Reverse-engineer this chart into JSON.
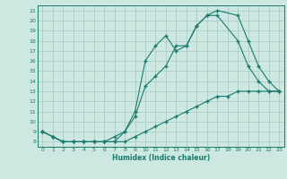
{
  "xlabel": "Humidex (Indice chaleur)",
  "bg_color": "#cce8e0",
  "grid_color": "#aacccc",
  "line_color": "#1a7a6e",
  "xlim": [
    -0.5,
    23.5
  ],
  "ylim": [
    7.5,
    21.5
  ],
  "xticks": [
    0,
    1,
    2,
    3,
    4,
    5,
    6,
    7,
    8,
    9,
    10,
    11,
    12,
    13,
    14,
    15,
    16,
    17,
    18,
    19,
    20,
    21,
    22,
    23
  ],
  "yticks": [
    8,
    9,
    10,
    11,
    12,
    13,
    14,
    15,
    16,
    17,
    18,
    19,
    20,
    21
  ],
  "line1_x": [
    0,
    1,
    2,
    3,
    4,
    5,
    6,
    7,
    8,
    9,
    10,
    11,
    12,
    13,
    14,
    15,
    16,
    17,
    18,
    19,
    20,
    21,
    22,
    23
  ],
  "line1_y": [
    9.0,
    8.5,
    8.0,
    8.0,
    8.0,
    8.0,
    8.0,
    8.0,
    8.0,
    8.5,
    9.0,
    9.5,
    10.0,
    10.5,
    11.0,
    11.5,
    12.0,
    12.5,
    12.5,
    13.0,
    13.0,
    13.0,
    13.0,
    13.0
  ],
  "line2_x": [
    0,
    1,
    2,
    3,
    4,
    5,
    6,
    7,
    8,
    9,
    10,
    11,
    12,
    13,
    14,
    15,
    16,
    17,
    19,
    20,
    21,
    22,
    23
  ],
  "line2_y": [
    9.0,
    8.5,
    8.0,
    8.0,
    8.0,
    8.0,
    8.0,
    8.0,
    9.0,
    10.5,
    13.5,
    14.5,
    15.5,
    17.5,
    17.5,
    19.5,
    20.5,
    20.5,
    18.0,
    15.5,
    14.0,
    13.0,
    13.0
  ],
  "line3_x": [
    0,
    1,
    2,
    3,
    4,
    5,
    6,
    7,
    8,
    9,
    10,
    11,
    12,
    13,
    14,
    15,
    16,
    17,
    19,
    20,
    21,
    22,
    23
  ],
  "line3_y": [
    9.0,
    8.5,
    8.0,
    8.0,
    8.0,
    8.0,
    8.0,
    8.5,
    9.0,
    11.0,
    16.0,
    17.5,
    18.5,
    17.0,
    17.5,
    19.5,
    20.5,
    21.0,
    20.5,
    18.0,
    15.5,
    14.0,
    13.0
  ]
}
